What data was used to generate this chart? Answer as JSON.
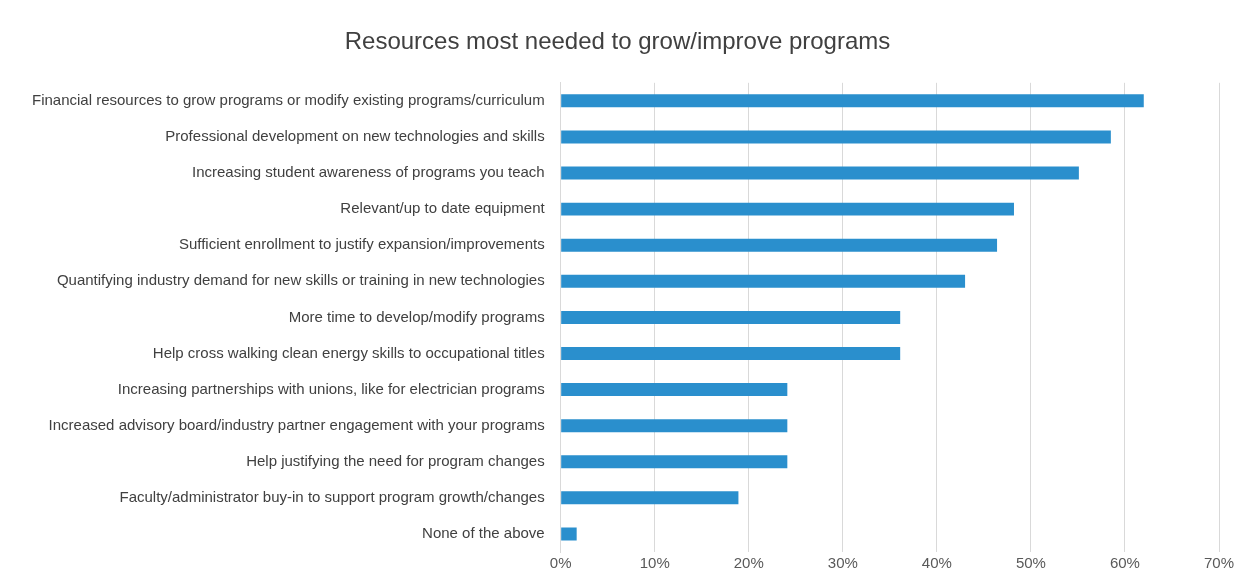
{
  "chart_data": {
    "type": "bar",
    "orientation": "horizontal",
    "title": "Resources most needed to grow/improve programs",
    "categories": [
      "Financial resources to grow programs or modify existing programs/curriculum",
      "Professional development on new technologies and skills",
      "Increasing student awareness of programs you teach",
      "Relevant/up to date equipment",
      "Sufficient enrollment to justify expansion/improvements",
      "Quantifying industry demand for new skills or training in new technologies",
      "More time to develop/modify programs",
      "Help cross walking clean energy skills to occupational titles",
      "Increasing partnerships with unions, like for electrician programs",
      "Increased advisory board/industry partner engagement with your programs",
      "Help justifying the need for program changes",
      "Faculty/administrator buy-in to support program growth/changes",
      "None of the above"
    ],
    "values": [
      62,
      58.5,
      55.1,
      48.2,
      46.4,
      43,
      36.1,
      36.1,
      24.1,
      24.1,
      24.1,
      18.9,
      1.7
    ],
    "color": "#2a8fcd",
    "xlim": [
      0,
      70
    ],
    "xticks": [
      {
        "value": 0,
        "label": "0%"
      },
      {
        "value": 10,
        "label": "10%"
      },
      {
        "value": 20,
        "label": "20%"
      },
      {
        "value": 30,
        "label": "30%"
      },
      {
        "value": 40,
        "label": "40%"
      },
      {
        "value": 50,
        "label": "50%"
      },
      {
        "value": 60,
        "label": "60%"
      },
      {
        "value": 70,
        "label": "70%"
      }
    ],
    "grid": "x",
    "legend": false
  }
}
